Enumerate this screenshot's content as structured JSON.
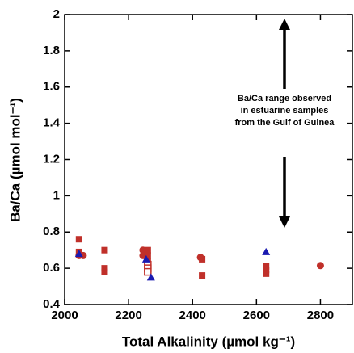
{
  "chart_data": {
    "type": "scatter",
    "xlabel": "Total Alkalinity (µmol kg⁻¹)",
    "ylabel": "Ba/Ca (µmol mol⁻¹)",
    "annotation": [
      "Ba/Ca range observed",
      "in estuarine samples",
      "from the Gulf of Guinea"
    ],
    "xlim": [
      2000,
      2900
    ],
    "ylim": [
      0.4,
      2
    ],
    "xticks": [
      2000,
      2200,
      2400,
      2600,
      2800
    ],
    "yticks": [
      0.4,
      0.6,
      0.8,
      1,
      1.2,
      1.4,
      1.6,
      1.8,
      2
    ],
    "series": [
      {
        "color": "#c0302a",
        "marker": "square",
        "filled": true,
        "x": [
          2045,
          2045,
          2125,
          2125,
          2125,
          2260,
          2260,
          2260,
          2430,
          2430,
          2630,
          2630,
          2630
        ],
        "values": [
          0.76,
          0.69,
          0.7,
          0.6,
          0.58,
          0.7,
          0.67,
          0.64,
          0.65,
          0.56,
          0.61,
          0.59,
          0.57
        ]
      },
      {
        "color": "#c0302a",
        "marker": "circle",
        "filled": true,
        "x": [
          2045,
          2058,
          2245,
          2245,
          2425,
          2800
        ],
        "values": [
          0.67,
          0.67,
          0.7,
          0.67,
          0.66,
          0.615
        ]
      },
      {
        "color": "#c0302a",
        "marker": "square",
        "filled": false,
        "x": [
          2260,
          2260,
          2260
        ],
        "values": [
          0.62,
          0.6,
          0.58
        ]
      },
      {
        "color": "#1a1ab0",
        "marker": "triangle",
        "filled": true,
        "x": [
          2045,
          2255,
          2270,
          2630
        ],
        "values": [
          0.68,
          0.65,
          0.55,
          0.69
        ]
      }
    ]
  }
}
